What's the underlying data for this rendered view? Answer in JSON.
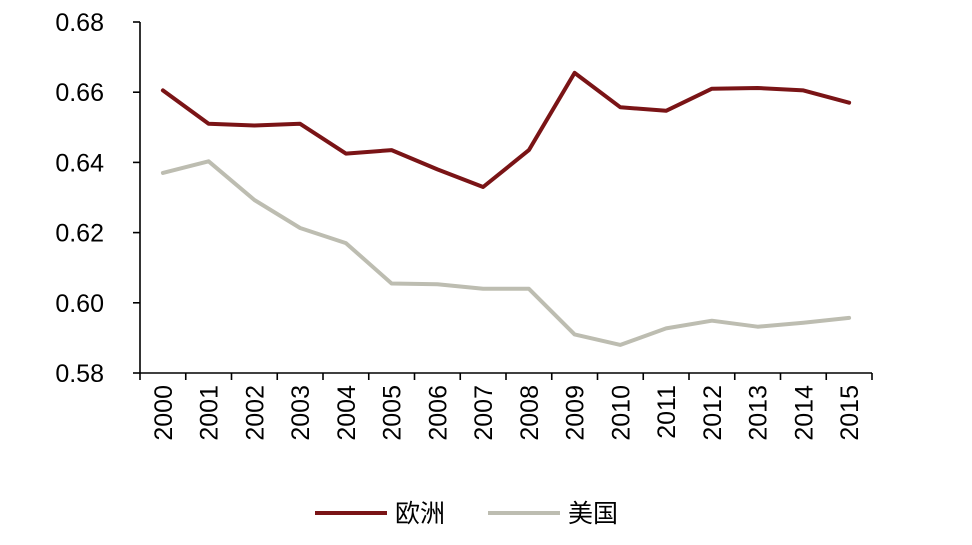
{
  "chart_data": {
    "type": "line",
    "title": "",
    "xlabel": "",
    "ylabel": "",
    "categories": [
      "2000",
      "2001",
      "2002",
      "2003",
      "2004",
      "2005",
      "2006",
      "2007",
      "2008",
      "2009",
      "2010",
      "2011",
      "2012",
      "2013",
      "2014",
      "2015"
    ],
    "ylim": [
      0.58,
      0.68
    ],
    "yticks": [
      "0.58",
      "0.60",
      "0.62",
      "0.64",
      "0.66",
      "0.68"
    ],
    "grid": false,
    "legend_position": "bottom",
    "series": [
      {
        "name": "欧洲",
        "color": "#7a1416",
        "values": [
          0.6605,
          0.651,
          0.6505,
          0.651,
          0.6425,
          0.6435,
          0.638,
          0.633,
          0.6435,
          0.6655,
          0.6557,
          0.6547,
          0.661,
          0.6612,
          0.6605,
          0.657
        ]
      },
      {
        "name": "美国",
        "color": "#bdbdb1",
        "values": [
          0.637,
          0.6403,
          0.6293,
          0.6213,
          0.617,
          0.6055,
          0.6053,
          0.604,
          0.604,
          0.591,
          0.588,
          0.5927,
          0.5949,
          0.5932,
          0.5943,
          0.5957
        ]
      }
    ]
  }
}
